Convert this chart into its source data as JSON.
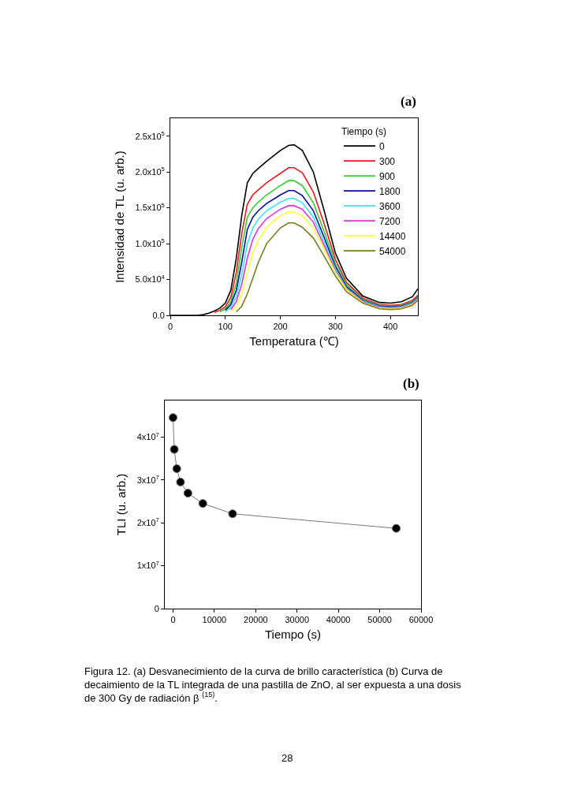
{
  "chart_data": [
    {
      "type": "line",
      "annotations": [
        "(a)"
      ],
      "xlabel": "Temperatura (℃)",
      "ylabel": "Intensidad de TL (u. arb.)",
      "legend_title": "Tiempo (s)",
      "legend": "top right",
      "grid": false,
      "marker": "none",
      "line_style": "solid",
      "x": [
        0,
        50,
        60,
        70,
        80,
        90,
        100,
        110,
        120,
        130,
        140,
        150,
        160,
        175,
        200,
        215,
        225,
        240,
        260,
        280,
        300,
        320,
        350,
        380,
        400,
        420,
        440,
        450
      ],
      "xlim": [
        0,
        450
      ],
      "xticks": [
        0,
        100,
        200,
        300,
        400
      ],
      "ylim": [
        0,
        275000
      ],
      "yticks": [
        {
          "value": 0,
          "label": "0.0"
        },
        {
          "value": 50000,
          "label": "5.0x10$^{4}$"
        },
        {
          "value": 100000,
          "label": "1.0x10$^{5}$"
        },
        {
          "value": 150000,
          "label": "1.5x10$^{5}$"
        },
        {
          "value": 200000,
          "label": "2.0x10$^{5}$"
        },
        {
          "value": 250000,
          "label": "2.5x10$^{5}$"
        }
      ],
      "series": [
        {
          "name": "0",
          "color": "#000000",
          "values": [
            0,
            0,
            1000,
            3000,
            6000,
            10000,
            17000,
            35000,
            80000,
            140000,
            185000,
            198000,
            205000,
            215000,
            230000,
            237000,
            238000,
            230000,
            200000,
            145000,
            87000,
            52000,
            27000,
            18000,
            17000,
            19000,
            26000,
            37000
          ]
        },
        {
          "name": "300",
          "color": "#e41a1c",
          "values": [
            null,
            null,
            null,
            null,
            4000,
            7000,
            12000,
            25000,
            60000,
            115000,
            155000,
            168000,
            175000,
            185000,
            198000,
            206000,
            206000,
            199000,
            172000,
            127000,
            78000,
            46000,
            24000,
            15000,
            14000,
            15000,
            21000,
            28000
          ]
        },
        {
          "name": "900",
          "color": "#33cc33",
          "values": [
            null,
            null,
            null,
            null,
            null,
            5000,
            9000,
            19000,
            45000,
            95000,
            137000,
            150000,
            158000,
            168000,
            181000,
            188000,
            188000,
            181000,
            157000,
            116000,
            72000,
            43000,
            22000,
            14000,
            13000,
            14000,
            19000,
            26000
          ]
        },
        {
          "name": "1800",
          "color": "#0a0a99",
          "values": [
            null,
            null,
            null,
            null,
            null,
            null,
            7000,
            15000,
            35000,
            75000,
            120000,
            137000,
            146000,
            156000,
            168000,
            174000,
            174000,
            167000,
            146000,
            108000,
            68000,
            40000,
            21000,
            13000,
            12000,
            13000,
            18000,
            25000
          ]
        },
        {
          "name": "3600",
          "color": "#33e5ee",
          "values": [
            null,
            null,
            null,
            null,
            null,
            null,
            5000,
            11000,
            26000,
            58000,
            100000,
            122000,
            134000,
            146000,
            158000,
            163000,
            163000,
            157000,
            137000,
            102000,
            65000,
            38000,
            20000,
            12000,
            11000,
            12000,
            17000,
            24000
          ]
        },
        {
          "name": "7200",
          "color": "#dd33dd",
          "values": [
            null,
            null,
            null,
            null,
            null,
            null,
            null,
            8000,
            19000,
            44000,
            80000,
            106000,
            121000,
            135000,
            148000,
            153000,
            153000,
            148000,
            130000,
            97000,
            62000,
            37000,
            19000,
            11000,
            10000,
            11000,
            16000,
            23000
          ]
        },
        {
          "name": "14400",
          "color": "#ffff33",
          "values": [
            null,
            null,
            null,
            null,
            null,
            null,
            null,
            5000,
            12000,
            30000,
            60000,
            87000,
            105000,
            123000,
            139000,
            144000,
            144000,
            139000,
            122000,
            92000,
            60000,
            36000,
            18000,
            10000,
            9000,
            10000,
            15000,
            22000
          ]
        },
        {
          "name": "54000",
          "color": "#7a7a1e",
          "values": [
            null,
            null,
            null,
            null,
            null,
            null,
            null,
            null,
            5000,
            13000,
            30000,
            52000,
            74000,
            100000,
            122000,
            129000,
            129000,
            123000,
            108000,
            82000,
            55000,
            33000,
            17000,
            9000,
            8000,
            9000,
            14000,
            21000
          ]
        }
      ]
    },
    {
      "type": "line",
      "annotations": [
        "(b)",
        "Figura 12. (a) Desvanecimiento de la curva de brillo característica (b) Curva de decaimiento de la TL integrada de una pastilla de ZnO, al ser expuesta a una dosis de 300 Gy de radiación β $^{(15)}$.",
        "28"
      ],
      "xlabel": "Tiempo (s)",
      "ylabel": "TLI (u. arb.)",
      "legend": false,
      "grid": false,
      "marker": "circle",
      "line_style": "solid",
      "x": [
        0,
        300,
        900,
        1800,
        3600,
        7200,
        14400,
        54000
      ],
      "xlim": [
        -2000,
        60000
      ],
      "xticks": [
        0,
        10000,
        20000,
        30000,
        40000,
        50000,
        60000
      ],
      "ylim": [
        0,
        48500000
      ],
      "yticks": [
        0,
        {
          "value": 10000000,
          "label": "1x10$^{7}$"
        },
        {
          "value": 20000000,
          "label": "2x10$^{7}$"
        },
        {
          "value": 30000000,
          "label": "3x10$^{7}$"
        },
        {
          "value": 40000000,
          "label": "4x10$^{7}$"
        }
      ],
      "series": [
        {
          "color": "#000000",
          "values": [
            44500000,
            37100000,
            32600000,
            29500000,
            26900000,
            24500000,
            22100000,
            18700000
          ]
        }
      ]
    }
  ]
}
